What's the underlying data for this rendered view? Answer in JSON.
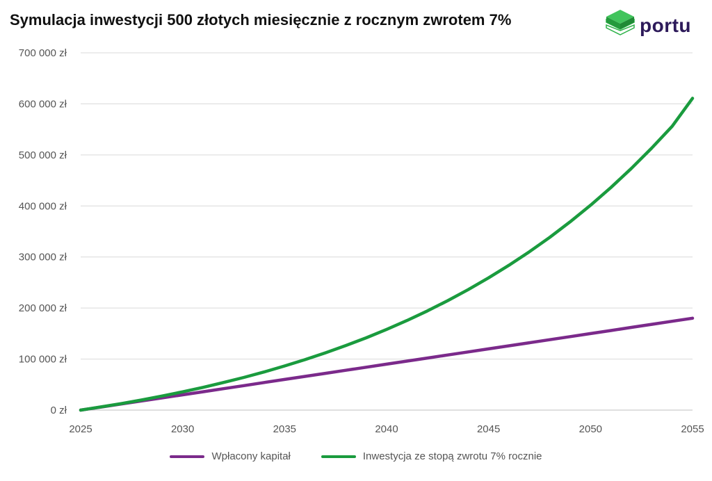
{
  "chart_data": {
    "type": "line",
    "title": "Symulacja inwestycji 500 złotych miesięcznie z rocznym zwrotem 7%",
    "xlabel": "",
    "ylabel": "",
    "xlim": [
      2025,
      2055
    ],
    "ylim": [
      0,
      700000
    ],
    "x_ticks": [
      "2025",
      "2030",
      "2035",
      "2040",
      "2045",
      "2050",
      "2055"
    ],
    "y_ticks": [
      "0 zł",
      "100 000 zł",
      "200 000 zł",
      "300 000 zł",
      "400 000 zł",
      "500 000 zł",
      "600 000 zł",
      "700 000 zł"
    ],
    "grid": true,
    "legend_position": "bottom",
    "x": [
      2025,
      2026,
      2027,
      2028,
      2029,
      2030,
      2031,
      2032,
      2033,
      2034,
      2035,
      2036,
      2037,
      2038,
      2039,
      2040,
      2041,
      2042,
      2043,
      2044,
      2045,
      2046,
      2047,
      2048,
      2049,
      2050,
      2051,
      2052,
      2053,
      2054,
      2055
    ],
    "series": [
      {
        "name": "Wpłacony kapitał",
        "color": "#7b2a8b",
        "values": [
          0,
          6000,
          12000,
          18000,
          24000,
          30000,
          36000,
          42000,
          48000,
          54000,
          60000,
          66000,
          72000,
          78000,
          84000,
          90000,
          96000,
          102000,
          108000,
          114000,
          120000,
          126000,
          132000,
          138000,
          144000,
          150000,
          156000,
          162000,
          168000,
          174000,
          180000
        ]
      },
      {
        "name": "Inwestycja ze stopą zwrotu 7% rocznie",
        "color": "#1a9b3e",
        "values": [
          0,
          6200,
          12800,
          19900,
          27600,
          35800,
          44600,
          54000,
          64000,
          74800,
          86500,
          98900,
          112200,
          126500,
          141700,
          158100,
          175600,
          194400,
          214500,
          236000,
          259100,
          283800,
          310200,
          338600,
          368900,
          401400,
          436200,
          473500,
          513400,
          556100,
          611000
        ]
      }
    ]
  },
  "logo": {
    "text": "portu",
    "color": "#2d1a5a",
    "brand_green": "#2fb34a"
  }
}
